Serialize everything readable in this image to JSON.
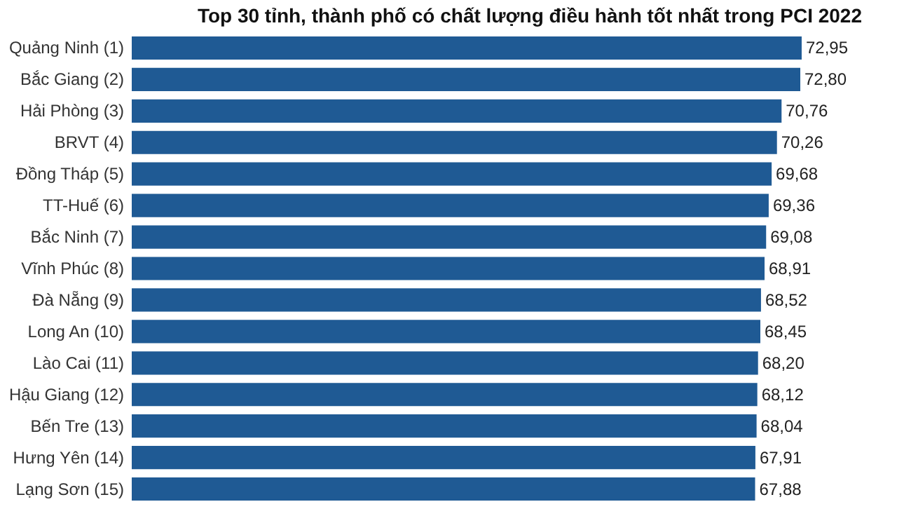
{
  "chart_data": {
    "type": "bar",
    "orientation": "horizontal",
    "title": "Top 30 tỉnh, thành phố có chất lượng điều hành tốt nhất trong PCI 2022",
    "categories": [
      "Quảng Ninh (1)",
      "Bắc Giang (2)",
      "Hải Phòng (3)",
      "BRVT (4)",
      "Đồng Tháp (5)",
      "TT-Huế (6)",
      "Bắc Ninh (7)",
      "Vĩnh Phúc (8)",
      "Đà Nẵng (9)",
      "Long An (10)",
      "Lào Cai (11)",
      "Hậu Giang (12)",
      "Bến Tre (13)",
      "Hưng Yên (14)",
      "Lạng Sơn (15)"
    ],
    "values": [
      72.95,
      72.8,
      70.76,
      70.26,
      69.68,
      69.36,
      69.08,
      68.91,
      68.52,
      68.45,
      68.2,
      68.12,
      68.04,
      67.91,
      67.88
    ],
    "value_labels": [
      "72,95",
      "72,80",
      "70,76",
      "70,26",
      "69,68",
      "69,36",
      "69,08",
      "68,91",
      "68,52",
      "68,45",
      "68,20",
      "68,12",
      "68,04",
      "67,91",
      "67,88"
    ],
    "color": "#1f5a94"
  }
}
